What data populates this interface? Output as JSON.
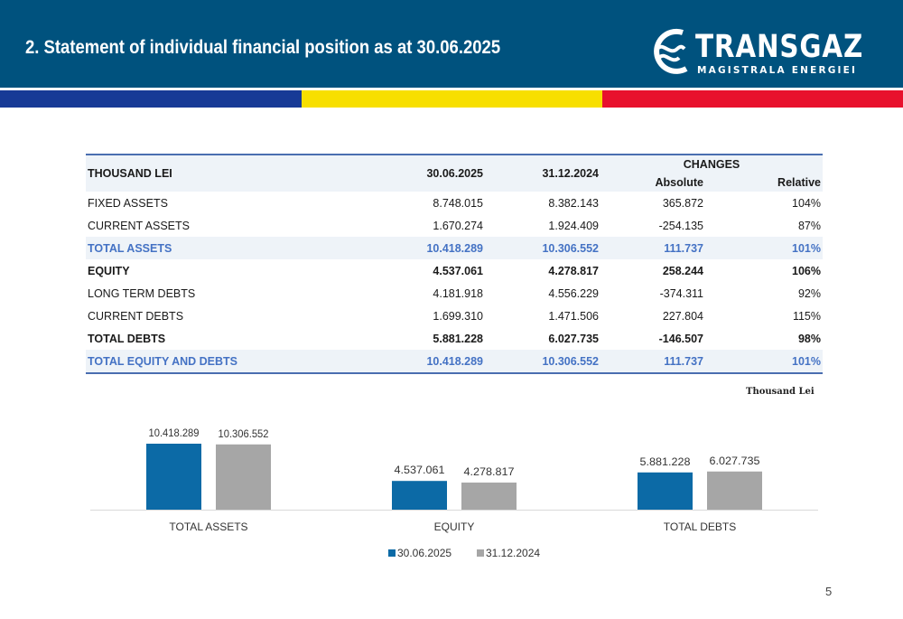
{
  "header": {
    "title": "2. Statement of individual financial position as at 30.06.2025",
    "logo_name": "TRANSGAZ",
    "logo_tagline": "MAGISTRALA ENERGIEI",
    "background": "#00527e"
  },
  "stripes": [
    {
      "color": "#173a96"
    },
    {
      "color": "#f7df00"
    },
    {
      "color": "#e8112d"
    }
  ],
  "table": {
    "header_label": "THOUSAND LEI",
    "col1": "30.06.2025",
    "col2": "31.12.2024",
    "changes": "CHANGES",
    "absolute": "Absolute",
    "relative": "Relative",
    "rows": [
      {
        "label": "FIXED ASSETS",
        "v1": "8.748.015",
        "v2": "8.382.143",
        "abs": "365.872",
        "rel": "104%",
        "style": "normal"
      },
      {
        "label": "CURRENT ASSETS",
        "v1": "1.670.274",
        "v2": "1.924.409",
        "abs": "-254.135",
        "rel": "87%",
        "style": "normal"
      },
      {
        "label": "TOTAL ASSETS",
        "v1": "10.418.289",
        "v2": "10.306.552",
        "abs": "111.737",
        "rel": "101%",
        "style": "total"
      },
      {
        "label": "EQUITY",
        "v1": "4.537.061",
        "v2": "4.278.817",
        "abs": "258.244",
        "rel": "106%",
        "style": "bold"
      },
      {
        "label": "LONG TERM DEBTS",
        "v1": "4.181.918",
        "v2": "4.556.229",
        "abs": "-374.311",
        "rel": "92%",
        "style": "normal"
      },
      {
        "label": "CURRENT DEBTS",
        "v1": "1.699.310",
        "v2": "1.471.506",
        "abs": "227.804",
        "rel": "115%",
        "style": "normal"
      },
      {
        "label": "TOTAL DEBTS",
        "v1": "5.881.228",
        "v2": "6.027.735",
        "abs": "-146.507",
        "rel": "98%",
        "style": "bold"
      },
      {
        "label": "TOTAL EQUITY AND DEBTS",
        "v1": "10.418.289",
        "v2": "10.306.552",
        "abs": "111.737",
        "rel": "101%",
        "style": "total"
      }
    ]
  },
  "unit_label": "Thousand Lei",
  "chart_data": {
    "type": "bar",
    "categories": [
      "TOTAL ASSETS",
      "EQUITY",
      "TOTAL DEBTS"
    ],
    "series": [
      {
        "name": "30.06.2025",
        "color": "#0c6aa6",
        "values": [
          10418.289,
          4537.061,
          5881.228
        ],
        "labels": [
          "10.418.289",
          "4.537.061",
          "5.881.228"
        ]
      },
      {
        "name": "31.12.2024",
        "color": "#a6a6a6",
        "values": [
          10306.552,
          4278.817,
          6027.735
        ],
        "labels": [
          "10.306.552",
          "4.278.817",
          "6.027.735"
        ]
      }
    ],
    "ylim": [
      0,
      10418.289
    ],
    "legend": "bottom",
    "grid": false
  },
  "page_number": "5"
}
